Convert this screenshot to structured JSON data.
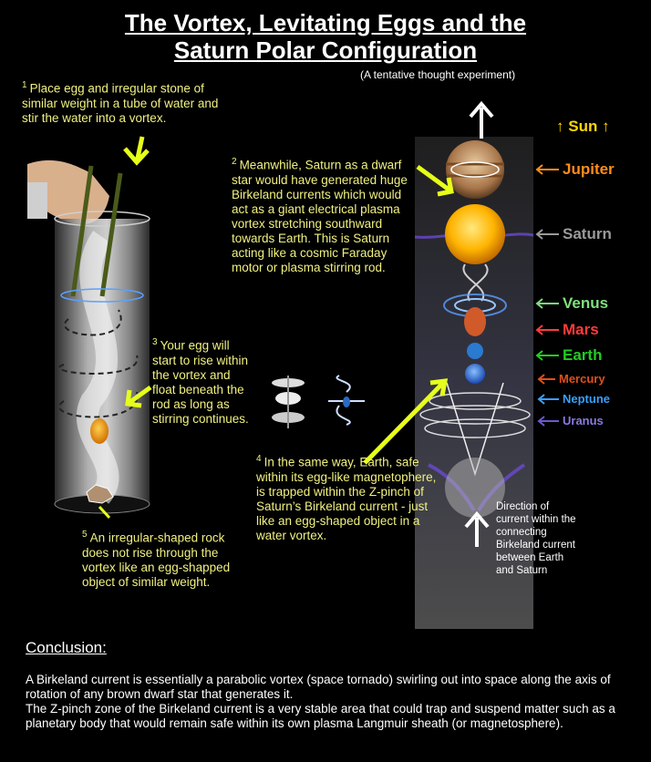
{
  "title": {
    "line1": "The Vortex, Levitating Eggs and the",
    "line2": "Saturn Polar Configuration"
  },
  "subtitle": "(A tentative thought experiment)",
  "steps": [
    {
      "num": "1",
      "text": "Place egg and irregular stone of similar weight in a tube of water and stir the water into a vortex."
    },
    {
      "num": "2",
      "text": "Meanwhile, Saturn as a dwarf star would have generated huge Birkeland currents which would act as a giant electrical plasma vortex stretching southward towards Earth.  This is Saturn acting like a cosmic Faraday motor or plasma stirring rod."
    },
    {
      "num": "3",
      "text": "Your egg will start to rise within the vortex and float beneath the rod as long as stirring continues."
    },
    {
      "num": "4",
      "text": "In the same way, Earth, safe within its egg-like magnetophere, is trapped within the Z-pinch of Saturn’s Birkeland current - just like an egg-shaped object in a water vortex."
    },
    {
      "num": "5",
      "text": "An irregular-shaped rock does not rise through the vortex like an egg-shapped object of similar weight."
    }
  ],
  "planets": {
    "sun": "Sun",
    "jupiter": "Jupiter",
    "saturn": "Saturn",
    "venus": "Venus",
    "mars": "Mars",
    "earth": "Earth",
    "mercury": "Mercury",
    "neptune": "Neptune",
    "uranus": "Uranus"
  },
  "colors": {
    "sun": "#ffd700",
    "jupiter": "#ff8c1a",
    "saturn": "#9a9a9a",
    "venus": "#7fe07f",
    "mars": "#ff3b3b",
    "earth": "#22cc22",
    "mercury": "#e0501a",
    "neptune": "#3aa0ff",
    "uranus": "#6a5acd",
    "annotation": "#f0f080",
    "arrow": "#e6ff1a"
  },
  "direction_text": "Direction of current within the connecting Birkeland current between Earth and Saturn",
  "conclusion": {
    "heading": "Conclusion:",
    "para1": "A Birkeland current is essentially a parabolic vortex (space tornado) swirling out into space along the axis of rotation of any brown dwarf star that generates it.",
    "para2": "The Z-pinch zone of the Birkeland current is a very stable area that could trap and suspend matter such as a planetary body that would remain safe within its own plasma Langmuir sheath (or magnetosphere)."
  }
}
